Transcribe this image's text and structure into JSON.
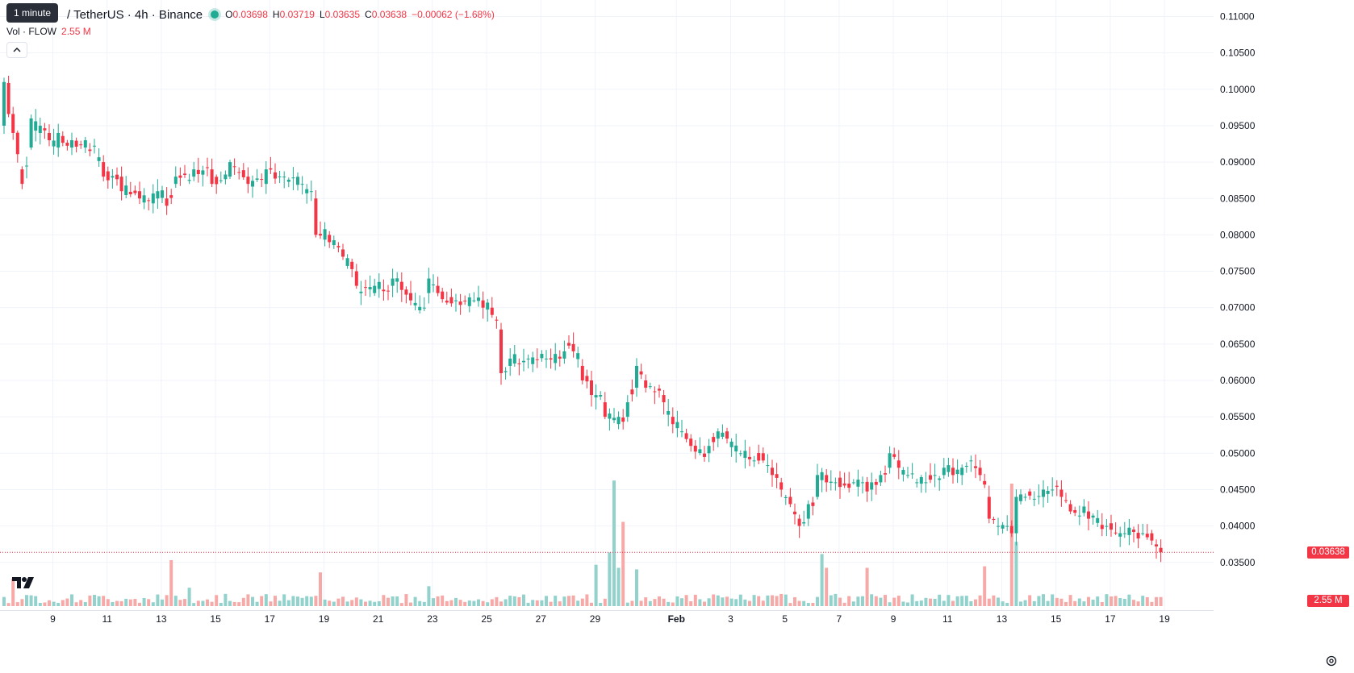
{
  "tooltip": "1 minute",
  "header": {
    "symbol": "/ TetherUS · 4h · Binance",
    "open_label": "O",
    "open": "0.03698",
    "high_label": "H",
    "high": "0.03719",
    "low_label": "L",
    "low": "0.03635",
    "close_label": "C",
    "close": "0.03638",
    "change": "−0.00062 (−1.68%)"
  },
  "volume_legend": {
    "label": "Vol · FLOW",
    "value": "2.55 M"
  },
  "collapse_icon": "chevron-up-icon",
  "price_tag": "0.03638",
  "volume_tag": "2.55 M",
  "colors": {
    "up": "#22ab94",
    "down": "#f23645",
    "up_volume": "#92d2cc",
    "down_volume": "#f7a9a7"
  },
  "chart_data": {
    "type": "candlestick",
    "interval": "4h",
    "y_ticks": [
      "0.11000",
      "0.10500",
      "0.10000",
      "0.09500",
      "0.09000",
      "0.08500",
      "0.08000",
      "0.07500",
      "0.07000",
      "0.06500",
      "0.06000",
      "0.05500",
      "0.05000",
      "0.04500",
      "0.04000",
      "0.03500"
    ],
    "ylim": [
      0.03,
      0.111
    ],
    "x_ticks": [
      "9",
      "11",
      "13",
      "15",
      "17",
      "19",
      "21",
      "23",
      "25",
      "27",
      "29",
      "Feb",
      "3",
      "5",
      "7",
      "9",
      "11",
      "13",
      "15",
      "17",
      "19"
    ],
    "x_tick_bars": [
      10.8,
      22.8,
      34.8,
      46.8,
      58.8,
      70.8,
      82.8,
      94.8,
      106.8,
      118.8,
      130.8,
      148.8,
      160.8,
      172.8,
      184.8,
      196.8,
      208.8,
      220.8,
      232.8,
      244.8,
      256.8
    ],
    "anchors": [
      [
        0,
        0.095,
        0.101
      ],
      [
        2,
        0.092,
        0.094
      ],
      [
        4,
        0.089,
        0.087
      ],
      [
        6,
        0.092,
        0.096
      ],
      [
        8,
        0.094,
        0.095
      ],
      [
        10,
        0.094,
        0.093
      ],
      [
        12,
        0.092,
        0.094
      ],
      [
        15,
        0.092,
        0.093
      ],
      [
        18,
        0.092,
        0.093
      ],
      [
        22,
        0.09,
        0.088
      ],
      [
        26,
        0.088,
        0.086
      ],
      [
        30,
        0.086,
        0.085
      ],
      [
        34,
        0.085,
        0.086
      ],
      [
        36,
        0.085,
        0.084
      ],
      [
        38,
        0.087,
        0.088
      ],
      [
        42,
        0.088,
        0.089
      ],
      [
        46,
        0.089,
        0.087
      ],
      [
        50,
        0.088,
        0.09
      ],
      [
        54,
        0.088,
        0.087
      ],
      [
        58,
        0.087,
        0.089
      ],
      [
        62,
        0.088,
        0.088
      ],
      [
        66,
        0.087,
        0.087
      ],
      [
        68,
        0.086,
        0.086
      ],
      [
        69,
        0.085,
        0.08
      ],
      [
        72,
        0.08,
        0.079
      ],
      [
        75,
        0.078,
        0.077
      ],
      [
        78,
        0.075,
        0.073
      ],
      [
        82,
        0.072,
        0.073
      ],
      [
        86,
        0.073,
        0.074
      ],
      [
        90,
        0.072,
        0.071
      ],
      [
        93,
        0.07,
        0.07
      ],
      [
        94,
        0.072,
        0.074
      ],
      [
        96,
        0.073,
        0.072
      ],
      [
        100,
        0.071,
        0.071
      ],
      [
        104,
        0.071,
        0.071
      ],
      [
        106,
        0.071,
        0.07
      ],
      [
        108,
        0.07,
        0.069
      ],
      [
        110,
        0.067,
        0.061
      ],
      [
        112,
        0.062,
        0.063
      ],
      [
        116,
        0.063,
        0.063
      ],
      [
        120,
        0.063,
        0.063
      ],
      [
        124,
        0.063,
        0.064
      ],
      [
        126,
        0.065,
        0.064
      ],
      [
        128,
        0.062,
        0.06
      ],
      [
        130,
        0.06,
        0.058
      ],
      [
        133,
        0.057,
        0.055
      ],
      [
        136,
        0.054,
        0.055
      ],
      [
        138,
        0.055,
        0.057
      ],
      [
        140,
        0.059,
        0.062
      ],
      [
        142,
        0.06,
        0.059
      ],
      [
        146,
        0.058,
        0.057
      ],
      [
        148,
        0.055,
        0.054
      ],
      [
        150,
        0.053,
        0.053
      ],
      [
        152,
        0.052,
        0.051
      ],
      [
        156,
        0.05,
        0.051
      ],
      [
        158,
        0.052,
        0.053
      ],
      [
        160,
        0.053,
        0.052
      ],
      [
        163,
        0.05,
        0.05
      ],
      [
        166,
        0.049,
        0.049
      ],
      [
        168,
        0.05,
        0.049
      ],
      [
        170,
        0.048,
        0.047
      ],
      [
        172,
        0.046,
        0.045
      ],
      [
        174,
        0.044,
        0.043
      ],
      [
        176,
        0.041,
        0.04
      ],
      [
        178,
        0.041,
        0.043
      ],
      [
        180,
        0.044,
        0.047
      ],
      [
        182,
        0.047,
        0.046
      ],
      [
        184,
        0.046,
        0.046
      ],
      [
        188,
        0.046,
        0.046
      ],
      [
        190,
        0.046,
        0.046
      ],
      [
        192,
        0.045,
        0.046
      ],
      [
        194,
        0.046,
        0.047
      ],
      [
        196,
        0.048,
        0.05
      ],
      [
        198,
        0.049,
        0.048
      ],
      [
        200,
        0.047,
        0.047
      ],
      [
        202,
        0.046,
        0.046
      ],
      [
        204,
        0.046,
        0.046
      ],
      [
        206,
        0.047,
        0.047
      ],
      [
        208,
        0.047,
        0.048
      ],
      [
        210,
        0.048,
        0.047
      ],
      [
        212,
        0.047,
        0.048
      ],
      [
        214,
        0.049,
        0.049
      ],
      [
        216,
        0.048,
        0.047
      ],
      [
        218,
        0.044,
        0.041
      ],
      [
        220,
        0.04,
        0.04
      ],
      [
        222,
        0.04,
        0.04
      ],
      [
        223,
        0.04,
        0.039
      ],
      [
        224,
        0.039,
        0.044
      ],
      [
        226,
        0.044,
        0.044
      ],
      [
        230,
        0.044,
        0.045
      ],
      [
        232,
        0.045,
        0.045
      ],
      [
        234,
        0.045,
        0.044
      ],
      [
        236,
        0.043,
        0.042
      ],
      [
        240,
        0.042,
        0.041
      ],
      [
        244,
        0.04,
        0.04
      ],
      [
        248,
        0.039,
        0.039
      ],
      [
        252,
        0.039,
        0.039
      ],
      [
        254,
        0.039,
        0.038
      ],
      [
        256,
        0.037,
        0.0364
      ]
    ],
    "volume_spikes": [
      [
        2,
        0.18
      ],
      [
        37,
        0.3
      ],
      [
        41,
        0.12
      ],
      [
        70,
        0.22
      ],
      [
        94,
        0.13
      ],
      [
        131,
        0.27
      ],
      [
        134,
        0.35
      ],
      [
        135,
        0.82
      ],
      [
        136,
        0.25
      ],
      [
        137,
        0.55
      ],
      [
        181,
        0.34
      ],
      [
        182,
        0.25
      ],
      [
        191,
        0.25
      ],
      [
        217,
        0.26
      ],
      [
        223,
        0.8
      ],
      [
        224,
        0.42
      ],
      [
        140,
        0.24
      ]
    ]
  }
}
